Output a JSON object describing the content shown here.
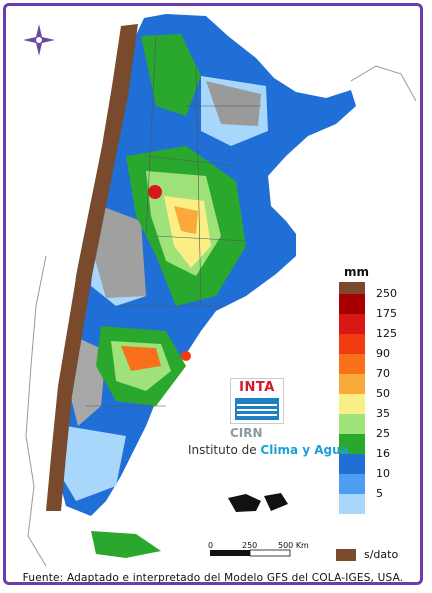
{
  "legend": {
    "unit": "mm",
    "classes": [
      {
        "label": "250",
        "color": "#a80000"
      },
      {
        "label": "175",
        "color": "#d81818"
      },
      {
        "label": "125",
        "color": "#f23b0e"
      },
      {
        "label": "90",
        "color": "#f8701a"
      },
      {
        "label": "70",
        "color": "#fba93a"
      },
      {
        "label": "50",
        "color": "#f9ef86"
      },
      {
        "label": "35",
        "color": "#9fe27a"
      },
      {
        "label": "25",
        "color": "#2aa82e"
      },
      {
        "label": "16",
        "color": "#1f6fd6"
      },
      {
        "label": "10",
        "color": "#4f9df0"
      },
      {
        "label": "5",
        "color": "#a9d6fb"
      },
      {
        "label": "s/dato",
        "color": "#7a4a2c"
      }
    ],
    "top_swatch_color": "#7a4a2c"
  },
  "logo": {
    "inta": "INTA",
    "cirn": "CIRN",
    "institute_prefix": "Instituto de ",
    "institute_accent": "Clima y Agua"
  },
  "scalebar": {
    "labels": [
      "0",
      "250",
      "500 Km"
    ]
  },
  "footer": {
    "source": "Fuente: Adaptado e interpretado del Modelo GFS del COLA-IGES, USA."
  },
  "colors": {
    "frame": "#6a3cb0",
    "compass": "#6a4aa0"
  }
}
